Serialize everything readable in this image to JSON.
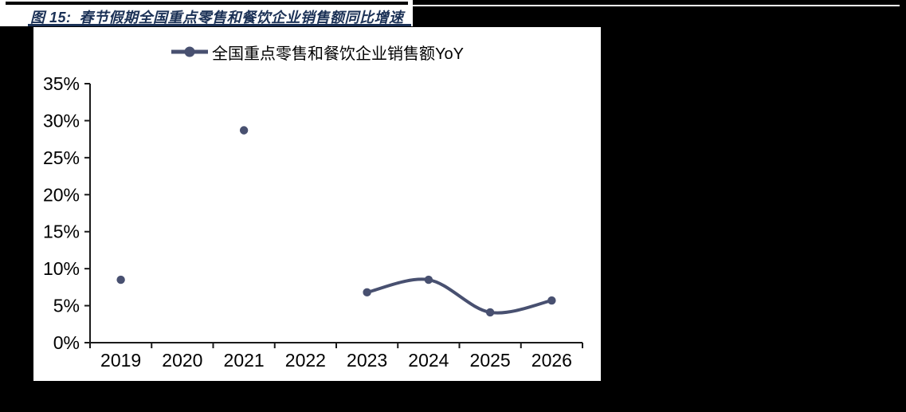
{
  "figure": {
    "label": "图 15:",
    "title": "春节假期全国重点零售和餐饮企业销售额同比增速"
  },
  "colors": {
    "background": "#000000",
    "panel": "#ffffff",
    "title_text": "#1b3156",
    "title_rule": "#1b3156",
    "top_bar": "#000000",
    "series": "#485070",
    "axis": "#1a1a1a",
    "tick_text": "#000000"
  },
  "chart_data": {
    "type": "line",
    "title": "图 15: 春节假期全国重点零售和餐饮企业销售额同比增速",
    "legend_entries": [
      "全国重点零售和餐饮企业销售额YoY"
    ],
    "legend_position": "top-center",
    "legend_marker": "line-circle",
    "categories": [
      "2019",
      "2020",
      "2021",
      "2022",
      "2023",
      "2024",
      "2025",
      "2026"
    ],
    "series": [
      {
        "name": "全国重点零售和餐饮企业销售额YoY",
        "color": "#485070",
        "marker": "circle",
        "smooth": true,
        "values": [
          8.5,
          null,
          28.7,
          null,
          6.8,
          8.5,
          4.1,
          5.7
        ]
      }
    ],
    "xlabel": "",
    "ylabel": "",
    "ylim": [
      0,
      35
    ],
    "ytick_step": 5,
    "ytick_labels": [
      "0%",
      "5%",
      "10%",
      "15%",
      "20%",
      "25%",
      "30%",
      "35%"
    ],
    "ytick_format": "percent",
    "grid": false
  }
}
